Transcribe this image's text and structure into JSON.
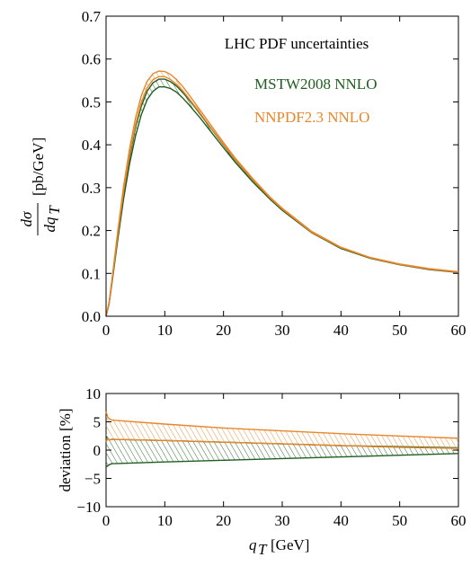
{
  "chart_data": [
    {
      "type": "line",
      "title": "LHC PDF uncertainties",
      "xlim": [
        0,
        60
      ],
      "ylim": [
        0,
        0.7
      ],
      "xticks": [
        "0",
        "10",
        "20",
        "30",
        "40",
        "50",
        "60"
      ],
      "yticks": [
        "0.0",
        "0.1",
        "0.2",
        "0.3",
        "0.4",
        "0.5",
        "0.6",
        "0.7"
      ],
      "ylabel_num": "dσ",
      "ylabel_den": "dq",
      "ylabel_den_sub": "T",
      "ylabel_unit": "[pb/GeV]",
      "legend_position": "top-right",
      "series": [
        {
          "name": "MSTW2008 NNLO",
          "color": "#1f5e1f",
          "x": [
            0,
            0.5,
            1,
            2,
            3,
            4,
            5,
            6,
            7,
            8,
            9,
            10,
            11,
            12,
            13,
            14,
            15,
            16,
            18,
            20,
            22,
            25,
            28,
            30,
            35,
            40,
            45,
            50,
            55,
            60
          ],
          "upper": [
            0,
            0.03,
            0.08,
            0.19,
            0.29,
            0.37,
            0.44,
            0.49,
            0.525,
            0.545,
            0.553,
            0.553,
            0.547,
            0.537,
            0.523,
            0.507,
            0.49,
            0.472,
            0.436,
            0.399,
            0.364,
            0.317,
            0.274,
            0.249,
            0.196,
            0.159,
            0.136,
            0.121,
            0.11,
            0.103
          ],
          "lower": [
            0,
            0.028,
            0.076,
            0.18,
            0.275,
            0.355,
            0.42,
            0.47,
            0.505,
            0.525,
            0.535,
            0.535,
            0.531,
            0.523,
            0.51,
            0.495,
            0.479,
            0.463,
            0.428,
            0.393,
            0.359,
            0.313,
            0.272,
            0.247,
            0.195,
            0.158,
            0.135,
            0.12,
            0.109,
            0.102
          ]
        },
        {
          "name": "NNPDF2.3 NNLO",
          "color": "#e8862a",
          "x": [
            0,
            0.5,
            1,
            2,
            3,
            4,
            5,
            6,
            7,
            8,
            9,
            10,
            11,
            12,
            13,
            14,
            15,
            16,
            18,
            20,
            22,
            25,
            28,
            30,
            35,
            40,
            45,
            50,
            55,
            60
          ],
          "upper": [
            0,
            0.032,
            0.085,
            0.2,
            0.305,
            0.39,
            0.462,
            0.515,
            0.548,
            0.566,
            0.572,
            0.571,
            0.564,
            0.552,
            0.537,
            0.519,
            0.5,
            0.481,
            0.443,
            0.405,
            0.369,
            0.321,
            0.277,
            0.252,
            0.198,
            0.161,
            0.137,
            0.122,
            0.111,
            0.104
          ],
          "lower": [
            0,
            0.03,
            0.081,
            0.192,
            0.293,
            0.376,
            0.446,
            0.499,
            0.533,
            0.552,
            0.559,
            0.559,
            0.552,
            0.541,
            0.527,
            0.51,
            0.492,
            0.474,
            0.437,
            0.4,
            0.365,
            0.318,
            0.275,
            0.25,
            0.196,
            0.16,
            0.136,
            0.121,
            0.11,
            0.103
          ]
        }
      ]
    },
    {
      "type": "area",
      "xlim": [
        0,
        60
      ],
      "ylim": [
        -10,
        10
      ],
      "xticks": [
        "0",
        "10",
        "20",
        "30",
        "40",
        "50",
        "60"
      ],
      "yticks": [
        "−10",
        "−5",
        "0",
        "5",
        "10"
      ],
      "ylabel": "deviation [%]",
      "xlabel_var": "q",
      "xlabel_sub": "T",
      "xlabel_unit": "[GeV]",
      "series": [
        {
          "name": "MSTW2008 NNLO",
          "color": "#1f5e1f",
          "x": [
            0,
            0.5,
            1,
            10,
            20,
            30,
            40,
            50,
            60
          ],
          "upper": [
            2.5,
            1.8,
            1.9,
            1.7,
            1.4,
            1.1,
            0.8,
            0.6,
            0.4
          ],
          "lower": [
            -3.0,
            -2.6,
            -2.4,
            -2.1,
            -1.8,
            -1.5,
            -1.2,
            -0.9,
            -0.6
          ]
        },
        {
          "name": "NNPDF2.3 NNLO",
          "color": "#e8862a",
          "x": [
            0,
            0.3,
            0.6,
            1,
            10,
            20,
            30,
            40,
            50,
            60
          ],
          "upper": [
            6.8,
            5.8,
            5.5,
            5.3,
            4.6,
            3.9,
            3.4,
            2.9,
            2.5,
            2.1
          ],
          "lower": [
            1.5,
            2.0,
            1.8,
            1.9,
            1.7,
            1.4,
            1.1,
            0.8,
            0.5,
            0.3
          ]
        }
      ]
    }
  ]
}
